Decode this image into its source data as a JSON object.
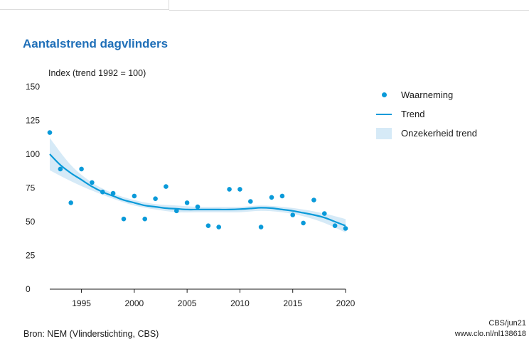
{
  "chart_data": {
    "type": "scatter",
    "title": "Aantalstrend dagvlinders",
    "ylabel": "Index (trend 1992 = 100)",
    "xlabel": "",
    "xlim": [
      1992,
      2020
    ],
    "ylim": [
      0,
      150
    ],
    "x_ticks": [
      1995,
      2000,
      2005,
      2010,
      2015,
      2020
    ],
    "y_ticks": [
      0,
      25,
      50,
      75,
      100,
      125,
      150
    ],
    "legend_position": "right",
    "legend": [
      "Waarneming",
      "Trend",
      "Onzekerheid trend"
    ],
    "colors": {
      "points": "#0a9ad9",
      "trend": "#0a9ad9",
      "band": "#d6eaf7",
      "title": "#1f6fb8"
    },
    "observations": {
      "name": "Waarneming",
      "x": [
        1992,
        1993,
        1994,
        1995,
        1996,
        1997,
        1998,
        1999,
        2000,
        2001,
        2002,
        2003,
        2004,
        2005,
        2006,
        2007,
        2008,
        2009,
        2010,
        2011,
        2012,
        2013,
        2014,
        2015,
        2016,
        2017,
        2018,
        2019,
        2020
      ],
      "y": [
        116,
        89,
        64,
        89,
        79,
        72,
        71,
        52,
        69,
        52,
        67,
        76,
        58,
        64,
        61,
        47,
        46,
        74,
        74,
        65,
        46,
        68,
        69,
        55,
        49,
        66,
        56,
        47,
        45
      ]
    },
    "trend": {
      "name": "Trend",
      "x": [
        1992,
        1993,
        1994,
        1995,
        1996,
        1997,
        1998,
        1999,
        2000,
        2001,
        2002,
        2003,
        2004,
        2005,
        2006,
        2007,
        2008,
        2009,
        2010,
        2011,
        2012,
        2013,
        2014,
        2015,
        2016,
        2017,
        2018,
        2019,
        2020
      ],
      "y": [
        100,
        92,
        86,
        81,
        76,
        72,
        69,
        66,
        64,
        62,
        61,
        60,
        59.5,
        59,
        59,
        59,
        59,
        59,
        59.3,
        59.8,
        60.3,
        60,
        59,
        58,
        56.5,
        55,
        53,
        50,
        47
      ]
    },
    "band": {
      "name": "Onzekerheid trend",
      "x": [
        1992,
        1994,
        1996,
        1998,
        2000,
        2002,
        2004,
        2006,
        2008,
        2010,
        2012,
        2014,
        2016,
        2018,
        2020
      ],
      "lower": [
        88,
        80,
        73,
        67,
        62,
        59,
        57,
        57,
        57,
        57,
        58,
        57,
        54,
        49,
        42
      ],
      "upper": [
        112,
        92,
        79,
        71,
        66,
        63,
        62,
        61,
        61,
        61,
        62,
        61,
        59,
        56,
        52
      ]
    }
  },
  "source_text": "Bron: NEM (Vlinderstichting, CBS)",
  "credit": {
    "line1": "CBS/jun21",
    "line2": "www.clo.nl/nl138618"
  }
}
